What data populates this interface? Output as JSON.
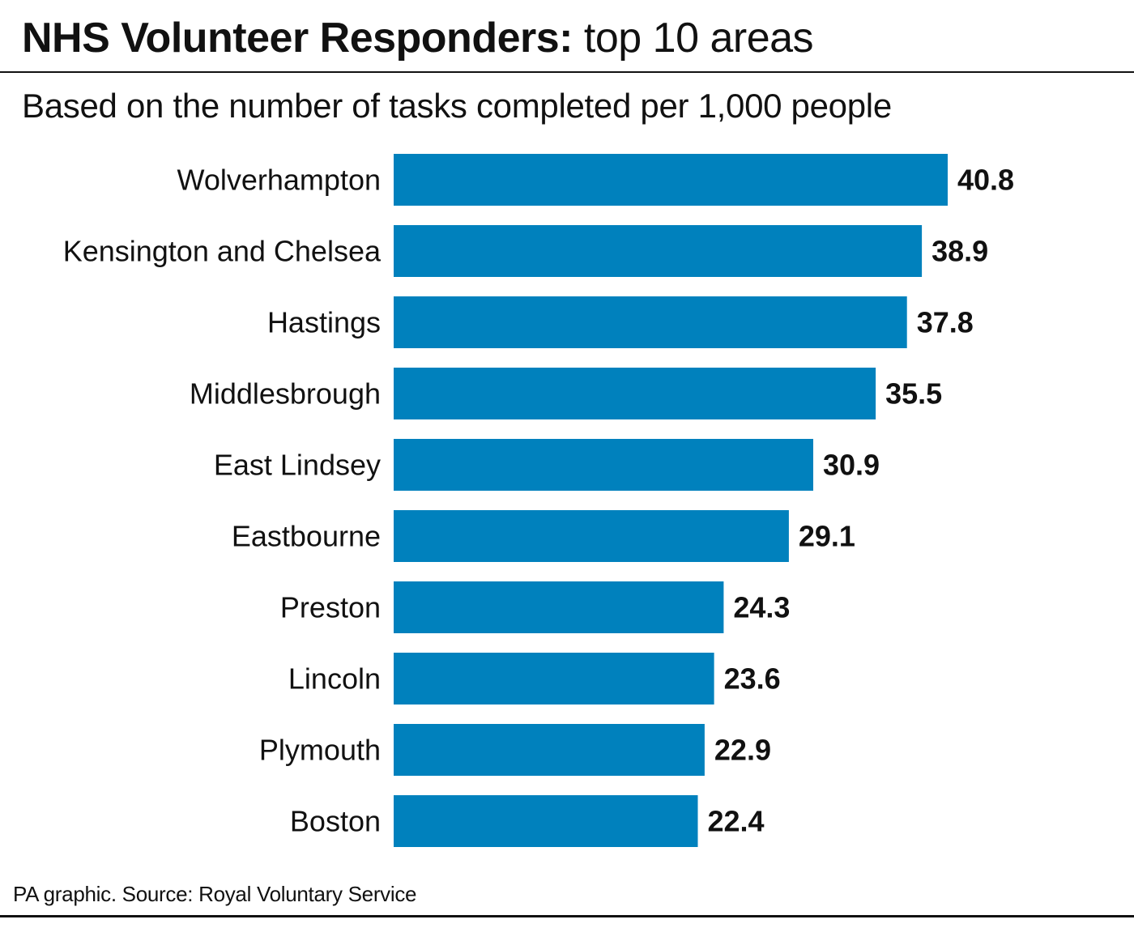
{
  "title_bold": "NHS Volunteer Responders:",
  "title_rest": " top 10 areas",
  "subtitle": "Based on the number of tasks completed per 1,000 people",
  "footer": "PA graphic. Source: Royal Voluntary Service",
  "colors": {
    "bar": "#0081bd",
    "text": "#111111",
    "rule": "#111111"
  },
  "chart_data": {
    "type": "bar",
    "orientation": "horizontal",
    "categories": [
      "Wolverhampton",
      "Kensington and Chelsea",
      "Hastings",
      "Middlesbrough",
      "East Lindsey",
      "Eastbourne",
      "Preston",
      "Lincoln",
      "Plymouth",
      "Boston"
    ],
    "values": [
      40.8,
      38.9,
      37.8,
      35.5,
      30.9,
      29.1,
      24.3,
      23.6,
      22.9,
      22.4
    ],
    "value_labels": [
      "40.8",
      "38.9",
      "37.8",
      "35.5",
      "30.9",
      "29.1",
      "24.3",
      "23.6",
      "22.9",
      "22.4"
    ],
    "title": "NHS Volunteer Responders: top 10 areas",
    "subtitle": "Based on the number of tasks completed per 1,000 people",
    "xlabel": "",
    "ylabel": "",
    "xlim": [
      0,
      40.8
    ],
    "grid": false,
    "legend": "none"
  }
}
